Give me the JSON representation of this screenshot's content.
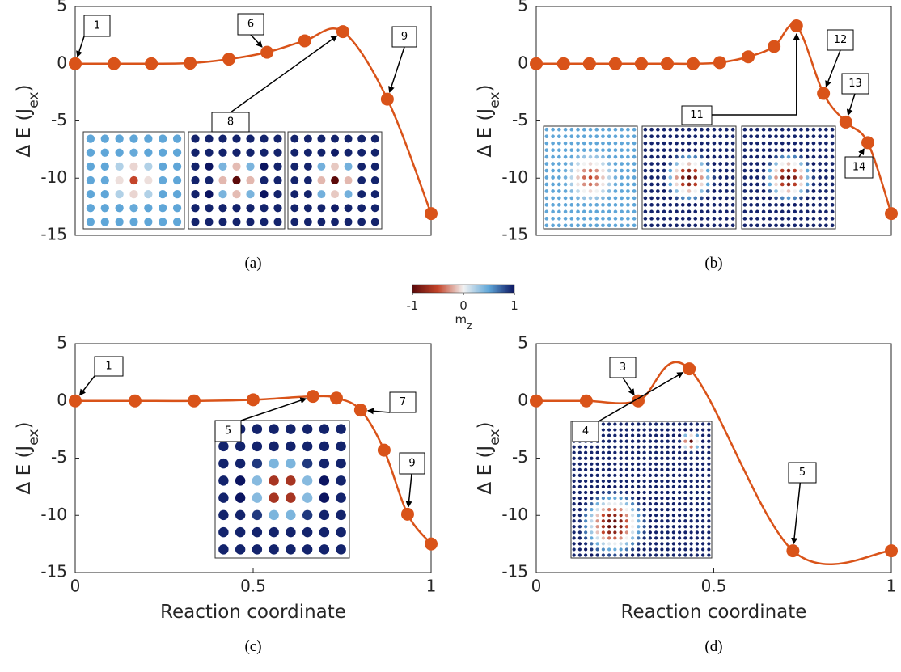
{
  "chart_data": [
    {
      "type": "line",
      "caption": "(a)",
      "ylabel": {
        "text": "Δ E (J",
        "sub": "ex",
        "tail": ")"
      },
      "xlim": [
        0,
        1
      ],
      "ylim": [
        -15,
        5
      ],
      "yticks": [
        5,
        0,
        -5,
        -10,
        -15
      ],
      "x": [
        0,
        0.109,
        0.214,
        0.323,
        0.432,
        0.539,
        0.645,
        0.752,
        0.877,
        1
      ],
      "series": [
        {
          "color": "#D95319",
          "values": [
            0,
            0,
            0,
            0.05,
            0.4,
            1.0,
            2.0,
            2.8,
            -3.1,
            -13.1
          ]
        }
      ],
      "annotations": [
        "1",
        "6",
        "8",
        "9"
      ]
    },
    {
      "type": "line",
      "caption": "(b)",
      "ylabel": {
        "text": "Δ E (J",
        "sub": "ex",
        "tail": ")"
      },
      "xlim": [
        0,
        1
      ],
      "ylim": [
        -15,
        5
      ],
      "yticks": [
        5,
        0,
        -5,
        -10,
        -15
      ],
      "x": [
        0,
        0.077,
        0.15,
        0.223,
        0.296,
        0.369,
        0.442,
        0.517,
        0.597,
        0.67,
        0.733,
        0.809,
        0.872,
        0.934,
        1
      ],
      "series": [
        {
          "color": "#D95319",
          "values": [
            0,
            0,
            0,
            0,
            0,
            0,
            0,
            0.1,
            0.6,
            1.5,
            3.3,
            -2.6,
            -5.1,
            -6.9,
            -13.1
          ]
        }
      ],
      "annotations": [
        "11",
        "12",
        "13",
        "14"
      ]
    },
    {
      "type": "line",
      "caption": "(c)",
      "xlabel": "Reaction coordinate",
      "ylabel": {
        "text": "Δ E (J",
        "sub": "ex",
        "tail": ")"
      },
      "xlim": [
        0,
        1
      ],
      "ylim": [
        -15,
        5
      ],
      "xticks": [
        0,
        0.5,
        1
      ],
      "yticks": [
        5,
        0,
        -5,
        -10,
        -15
      ],
      "x": [
        0,
        0.168,
        0.334,
        0.5,
        0.668,
        0.734,
        0.802,
        0.868,
        0.934,
        1
      ],
      "series": [
        {
          "color": "#D95319",
          "values": [
            0,
            0,
            0,
            0.1,
            0.4,
            0.25,
            -0.8,
            -4.3,
            -9.9,
            -12.5
          ]
        }
      ],
      "annotations": [
        "1",
        "5",
        "7",
        "9"
      ]
    },
    {
      "type": "line",
      "caption": "(d)",
      "xlabel": "Reaction coordinate",
      "ylabel": {
        "text": "Δ E (J",
        "sub": "ex",
        "tail": ")"
      },
      "xlim": [
        0,
        1
      ],
      "ylim": [
        -15,
        5
      ],
      "xticks": [
        0,
        0.5,
        1
      ],
      "yticks": [
        5,
        0,
        -5,
        -10,
        -15
      ],
      "x": [
        0,
        0.141,
        0.287,
        0.431,
        0.723,
        1
      ],
      "series": [
        {
          "color": "#D95319",
          "values": [
            0,
            0,
            0,
            2.8,
            -13.1,
            -13.1
          ]
        }
      ],
      "annotations": [
        "3",
        "4",
        "5"
      ]
    }
  ],
  "colorbar": {
    "label": "m",
    "label_sub": "z",
    "lim": [
      -1,
      1
    ],
    "ticks": [
      -1,
      0,
      1
    ],
    "colors": [
      "#5c0a0a",
      "#c4452b",
      "#f2f2f2",
      "#5fa6d8",
      "#0b1460"
    ]
  }
}
